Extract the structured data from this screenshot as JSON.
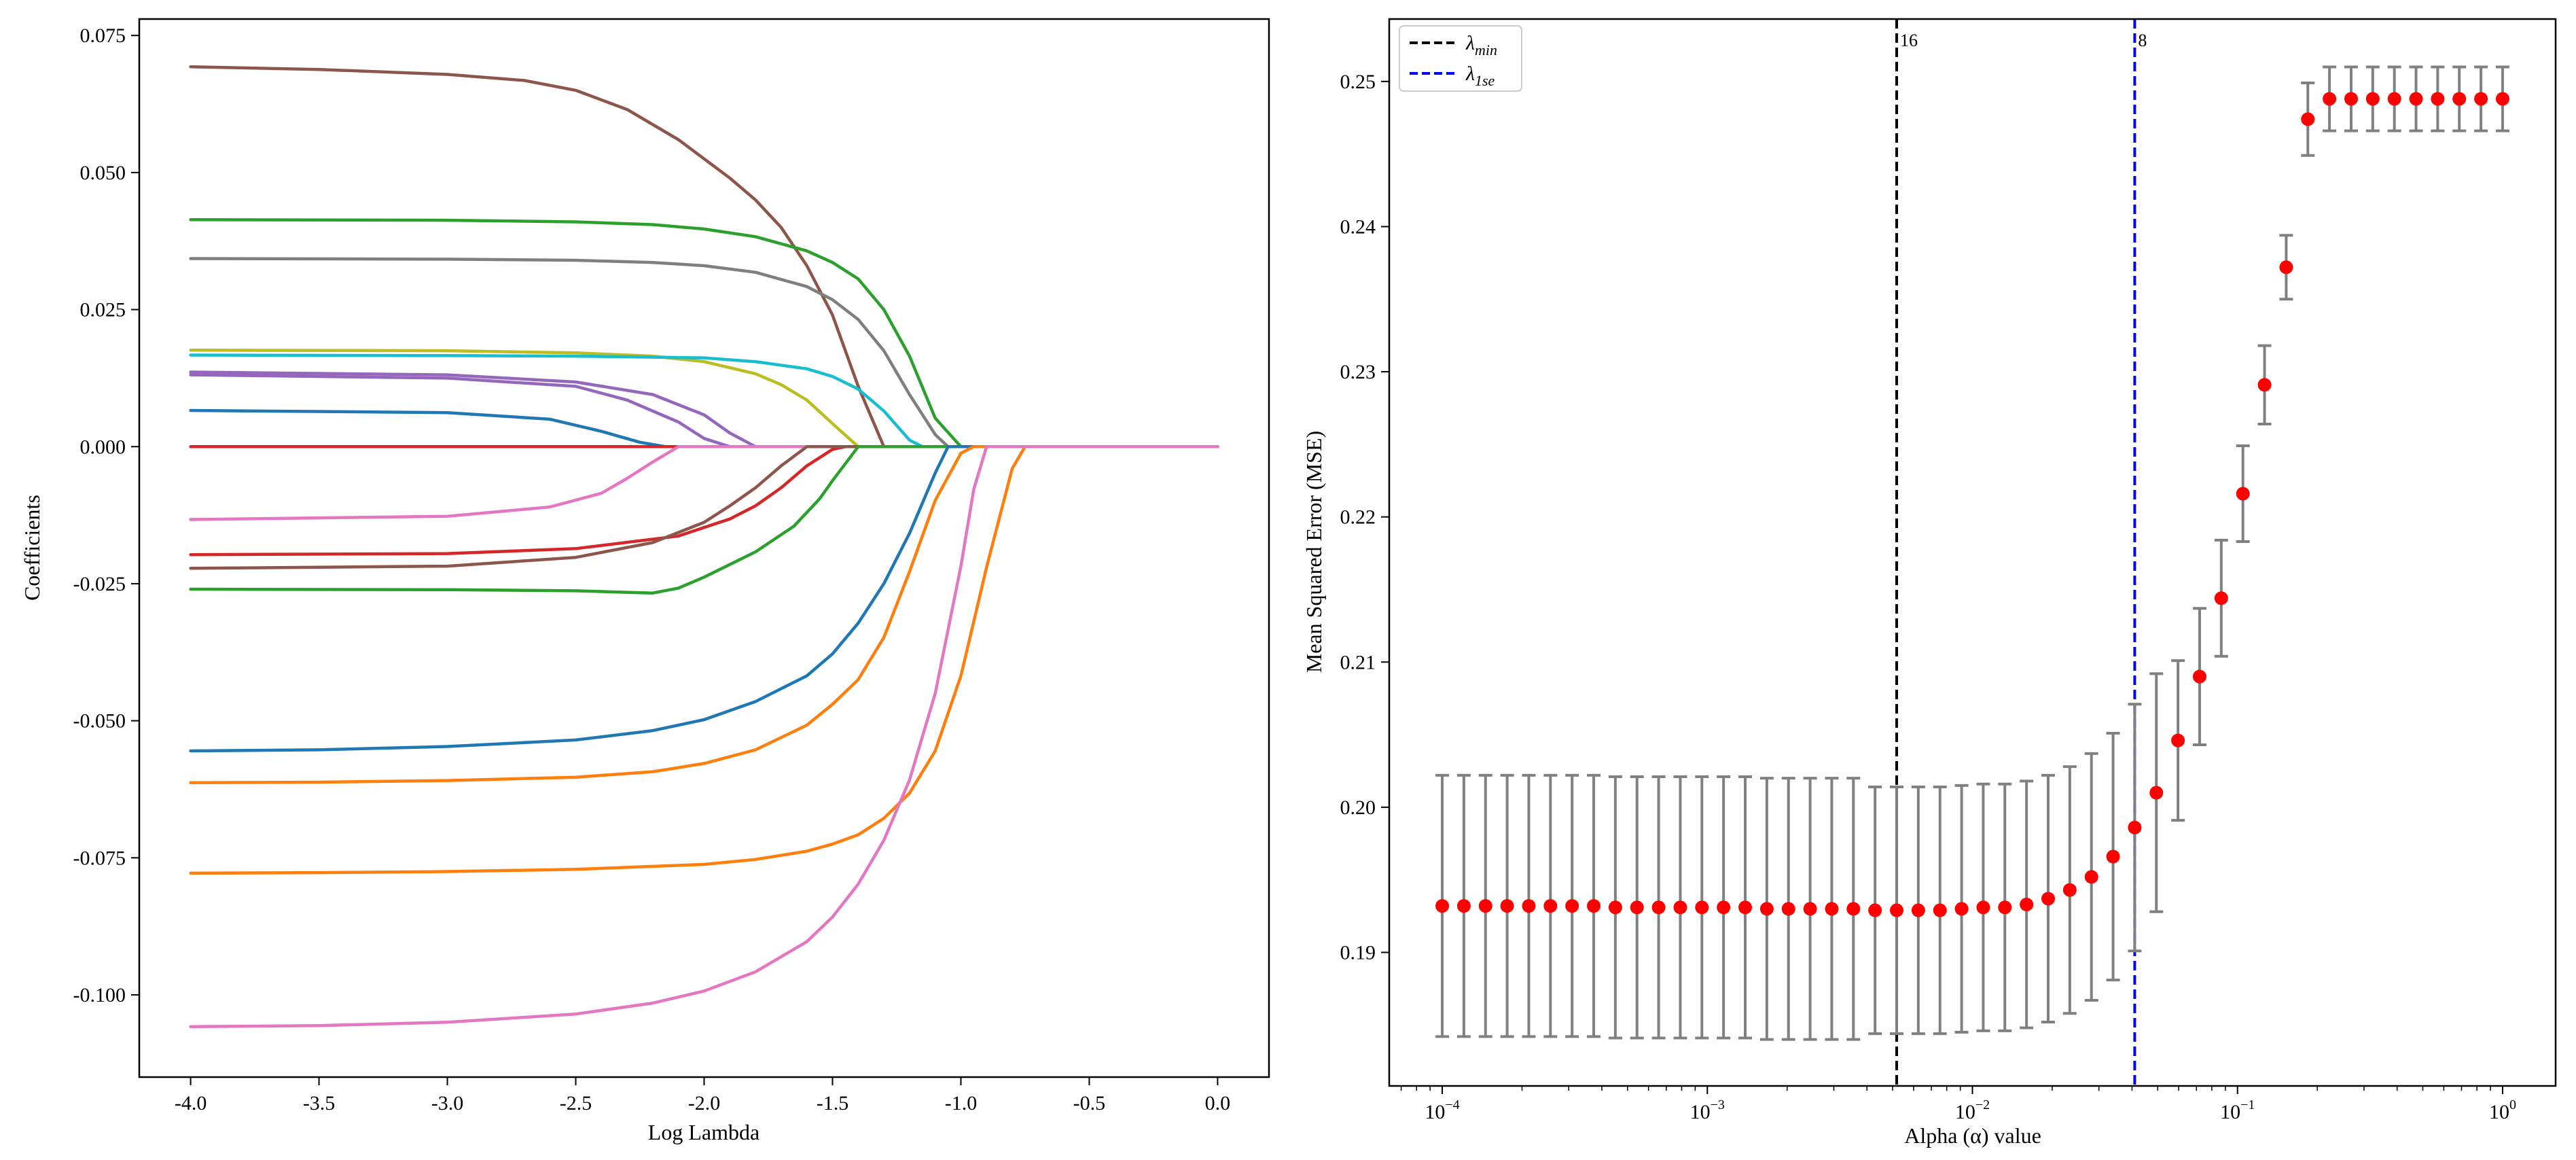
{
  "chart_data": [
    {
      "type": "line",
      "title": "",
      "xlabel": "Log Lambda",
      "ylabel": "Coefficients",
      "xlim": [
        -4.2,
        0.2
      ],
      "ylim": [
        -0.115,
        0.078
      ],
      "xticks": [
        {
          "value": -4.0,
          "label": "-4.0"
        },
        {
          "value": -3.5,
          "label": "-3.5"
        },
        {
          "value": -3.0,
          "label": "-3.0"
        },
        {
          "value": -2.5,
          "label": "-2.5"
        },
        {
          "value": -2.0,
          "label": "-2.0"
        },
        {
          "value": -1.5,
          "label": "-1.5"
        },
        {
          "value": -1.0,
          "label": "-1.0"
        },
        {
          "value": -0.5,
          "label": "-0.5"
        },
        {
          "value": 0.0,
          "label": "0.0"
        }
      ],
      "yticks": [
        {
          "value": 0.075,
          "label": "0.075"
        },
        {
          "value": 0.05,
          "label": "0.050"
        },
        {
          "value": 0.025,
          "label": "0.025"
        },
        {
          "value": 0.0,
          "label": "0.000"
        },
        {
          "value": -0.025,
          "label": "-0.025"
        },
        {
          "value": -0.05,
          "label": "-0.050"
        },
        {
          "value": -0.075,
          "label": "-0.075"
        },
        {
          "value": -0.1,
          "label": "-0.100"
        }
      ],
      "series": [
        {
          "name": "brown_top",
          "color": "#8c564b",
          "x": [
            -4.0,
            -3.5,
            -3.0,
            -2.7,
            -2.5,
            -2.3,
            -2.1,
            -1.9,
            -1.8,
            -1.7,
            -1.6,
            -1.5,
            -1.4,
            -1.3,
            -1.2,
            -1.1,
            0.0
          ],
          "y": [
            0.0693,
            0.0688,
            0.0679,
            0.0668,
            0.065,
            0.0615,
            0.056,
            0.049,
            0.045,
            0.04,
            0.033,
            0.024,
            0.011,
            0.0,
            0.0,
            0.0,
            0.0
          ]
        },
        {
          "name": "green_top",
          "color": "#2ca02c",
          "x": [
            -4.0,
            -3.0,
            -2.5,
            -2.2,
            -2.0,
            -1.8,
            -1.6,
            -1.5,
            -1.4,
            -1.3,
            -1.2,
            -1.1,
            -1.0,
            0.0
          ],
          "y": [
            0.0414,
            0.0413,
            0.041,
            0.0405,
            0.0397,
            0.0383,
            0.0357,
            0.0336,
            0.0306,
            0.025,
            0.0165,
            0.0052,
            0.0,
            0.0
          ]
        },
        {
          "name": "gray",
          "color": "#7f7f7f",
          "x": [
            -4.0,
            -3.0,
            -2.5,
            -2.2,
            -2.0,
            -1.8,
            -1.6,
            -1.5,
            -1.4,
            -1.3,
            -1.2,
            -1.1,
            -1.05,
            0.0
          ],
          "y": [
            0.0343,
            0.0342,
            0.034,
            0.0336,
            0.033,
            0.0318,
            0.0292,
            0.0268,
            0.0232,
            0.0175,
            0.0095,
            0.0022,
            0.0,
            0.0
          ]
        },
        {
          "name": "olive",
          "color": "#bcbd22",
          "x": [
            -4.0,
            -3.0,
            -2.5,
            -2.2,
            -2.0,
            -1.8,
            -1.7,
            -1.6,
            -1.5,
            -1.4,
            0.0
          ],
          "y": [
            0.0176,
            0.0175,
            0.0171,
            0.0165,
            0.0155,
            0.0133,
            0.0113,
            0.0085,
            0.0042,
            0.0,
            0.0
          ]
        },
        {
          "name": "cyan",
          "color": "#17becf",
          "x": [
            -4.0,
            -3.0,
            -2.5,
            -2.0,
            -1.8,
            -1.6,
            -1.5,
            -1.4,
            -1.3,
            -1.2,
            -1.15,
            0.0
          ],
          "y": [
            0.0167,
            0.0166,
            0.0165,
            0.0162,
            0.0155,
            0.0142,
            0.0128,
            0.0105,
            0.0065,
            0.0012,
            0.0,
            0.0
          ]
        },
        {
          "name": "purple_a",
          "color": "#9467bd",
          "x": [
            -4.0,
            -3.0,
            -2.5,
            -2.2,
            -2.0,
            -1.9,
            -1.8,
            0.0
          ],
          "y": [
            0.0136,
            0.0131,
            0.0118,
            0.0095,
            0.0058,
            0.0025,
            0.0,
            0.0
          ]
        },
        {
          "name": "purple_b",
          "color": "#9467bd",
          "x": [
            -4.0,
            -3.0,
            -2.5,
            -2.3,
            -2.1,
            -2.0,
            -1.9,
            0.0
          ],
          "y": [
            0.0131,
            0.0125,
            0.011,
            0.0085,
            0.0045,
            0.0015,
            0.0,
            0.0
          ]
        },
        {
          "name": "blue_small",
          "color": "#1f77b4",
          "x": [
            -4.0,
            -3.0,
            -2.6,
            -2.4,
            -2.25,
            -2.15,
            0.0
          ],
          "y": [
            0.0066,
            0.0062,
            0.005,
            0.0028,
            0.0008,
            0.0,
            0.0
          ]
        },
        {
          "name": "red_zero",
          "color": "#d62728",
          "x": [
            -4.0,
            0.0
          ],
          "y": [
            0.0,
            0.0
          ]
        },
        {
          "name": "pink_small",
          "color": "#e377c2",
          "x": [
            -4.0,
            -3.0,
            -2.6,
            -2.4,
            -2.3,
            -2.2,
            -2.1,
            0.0
          ],
          "y": [
            -0.0133,
            -0.0127,
            -0.011,
            -0.0085,
            -0.0058,
            -0.0028,
            0.0,
            0.0
          ]
        },
        {
          "name": "red_neg",
          "color": "#d62728",
          "x": [
            -4.0,
            -3.0,
            -2.5,
            -2.1,
            -1.9,
            -1.8,
            -1.7,
            -1.6,
            -1.5,
            -1.45,
            0.0
          ],
          "y": [
            -0.0197,
            -0.0195,
            -0.0186,
            -0.0163,
            -0.0132,
            -0.0108,
            -0.0075,
            -0.0035,
            -0.0005,
            0.0,
            0.0
          ]
        },
        {
          "name": "brown_neg",
          "color": "#8c564b",
          "x": [
            -4.0,
            -3.0,
            -2.5,
            -2.2,
            -2.0,
            -1.9,
            -1.8,
            -1.7,
            -1.6,
            0.0
          ],
          "y": [
            -0.0222,
            -0.0218,
            -0.0202,
            -0.0175,
            -0.0138,
            -0.0108,
            -0.0075,
            -0.0035,
            0.0,
            0.0
          ]
        },
        {
          "name": "green_neg",
          "color": "#2ca02c",
          "x": [
            -4.0,
            -3.0,
            -2.5,
            -2.2,
            -2.1,
            -2.0,
            -1.8,
            -1.65,
            -1.55,
            -1.5,
            -1.4,
            0.0
          ],
          "y": [
            -0.026,
            -0.0261,
            -0.0263,
            -0.0267,
            -0.0258,
            -0.0238,
            -0.0192,
            -0.0145,
            -0.0095,
            -0.0062,
            0.0,
            0.0
          ]
        },
        {
          "name": "blue_neg",
          "color": "#1f77b4",
          "x": [
            -4.0,
            -3.5,
            -3.0,
            -2.5,
            -2.2,
            -2.0,
            -1.8,
            -1.6,
            -1.5,
            -1.4,
            -1.3,
            -1.2,
            -1.1,
            -1.05,
            0.0
          ],
          "y": [
            -0.0555,
            -0.0553,
            -0.0547,
            -0.0535,
            -0.0518,
            -0.0498,
            -0.0465,
            -0.0418,
            -0.0378,
            -0.0322,
            -0.025,
            -0.0158,
            -0.0048,
            0.0,
            0.0
          ]
        },
        {
          "name": "orange_a",
          "color": "#ff7f0e",
          "x": [
            -4.0,
            -3.5,
            -3.0,
            -2.5,
            -2.2,
            -2.0,
            -1.8,
            -1.6,
            -1.5,
            -1.4,
            -1.3,
            -1.2,
            -1.1,
            -1.0,
            -0.95,
            0.0
          ],
          "y": [
            -0.0613,
            -0.0612,
            -0.0609,
            -0.0603,
            -0.0593,
            -0.0578,
            -0.0553,
            -0.0508,
            -0.047,
            -0.0425,
            -0.0348,
            -0.0228,
            -0.0098,
            -0.0012,
            0.0,
            0.0
          ]
        },
        {
          "name": "orange_b",
          "color": "#ff7f0e",
          "x": [
            -4.0,
            -3.5,
            -3.0,
            -2.5,
            -2.0,
            -1.8,
            -1.6,
            -1.5,
            -1.4,
            -1.3,
            -1.2,
            -1.1,
            -1.0,
            -0.9,
            -0.8,
            -0.75,
            0.0
          ],
          "y": [
            -0.0778,
            -0.0777,
            -0.0775,
            -0.0771,
            -0.0762,
            -0.0753,
            -0.0738,
            -0.0725,
            -0.0708,
            -0.0678,
            -0.0632,
            -0.0555,
            -0.0418,
            -0.022,
            -0.004,
            0.0,
            0.0
          ]
        },
        {
          "name": "pink_big",
          "color": "#e377c2",
          "x": [
            -4.0,
            -3.5,
            -3.0,
            -2.5,
            -2.2,
            -2.0,
            -1.8,
            -1.6,
            -1.5,
            -1.4,
            -1.3,
            -1.2,
            -1.1,
            -1.0,
            -0.95,
            -0.9,
            -0.85,
            -0.8,
            0.0
          ],
          "y": [
            -0.1058,
            -0.1056,
            -0.105,
            -0.1035,
            -0.1015,
            -0.0993,
            -0.0958,
            -0.0903,
            -0.0858,
            -0.0798,
            -0.0718,
            -0.0608,
            -0.045,
            -0.0218,
            -0.0078,
            0.0,
            0.0,
            0.0,
            0.0
          ]
        }
      ]
    },
    {
      "type": "scatter",
      "title": "",
      "xlabel": "Alpha (α) value",
      "ylabel": "Mean Squared Error (MSE)",
      "xscale": "log",
      "xlim_log10": [
        -4.2,
        0.2
      ],
      "ylim": [
        0.1808,
        0.2543
      ],
      "xticks": [
        {
          "exp": -4,
          "base": "10",
          "sup": "−4"
        },
        {
          "exp": -3,
          "base": "10",
          "sup": "−3"
        },
        {
          "exp": -2,
          "base": "10",
          "sup": "−2"
        },
        {
          "exp": -1,
          "base": "10",
          "sup": "−1"
        },
        {
          "exp": 0,
          "base": "10",
          "sup": "0"
        }
      ],
      "yticks": [
        {
          "value": 0.19,
          "label": "0.19"
        },
        {
          "value": 0.2,
          "label": "0.20"
        },
        {
          "value": 0.21,
          "label": "0.21"
        },
        {
          "value": 0.22,
          "label": "0.22"
        },
        {
          "value": 0.23,
          "label": "0.23"
        },
        {
          "value": 0.24,
          "label": "0.24"
        },
        {
          "value": 0.25,
          "label": "0.25"
        }
      ],
      "log10_alpha": [
        -4.0,
        -3.9184,
        -3.8367,
        -3.7551,
        -3.6735,
        -3.5918,
        -3.5102,
        -3.4286,
        -3.3469,
        -3.2653,
        -3.1837,
        -3.102,
        -3.0204,
        -2.9388,
        -2.8571,
        -2.7755,
        -2.6939,
        -2.6122,
        -2.5306,
        -2.449,
        -2.3673,
        -2.2857,
        -2.2041,
        -2.1224,
        -2.0408,
        -1.9592,
        -1.8776,
        -1.7959,
        -1.7143,
        -1.6327,
        -1.551,
        -1.4694,
        -1.3878,
        -1.3061,
        -1.2245,
        -1.1429,
        -1.0612,
        -0.9796,
        -0.898,
        -0.8163,
        -0.7347,
        -0.6531,
        -0.5714,
        -0.4898,
        -0.4082,
        -0.3265,
        -0.2449,
        -0.1633,
        -0.0816,
        0.0
      ],
      "mse": [
        0.1932,
        0.1932,
        0.1932,
        0.1932,
        0.1932,
        0.1932,
        0.1932,
        0.1932,
        0.1931,
        0.1931,
        0.1931,
        0.1931,
        0.1931,
        0.1931,
        0.1931,
        0.193,
        0.193,
        0.193,
        0.193,
        0.193,
        0.1929,
        0.1929,
        0.1929,
        0.1929,
        0.193,
        0.1931,
        0.1931,
        0.1933,
        0.1937,
        0.1943,
        0.1952,
        0.1966,
        0.1986,
        0.201,
        0.2046,
        0.209,
        0.2144,
        0.2216,
        0.2291,
        0.2372,
        0.2474,
        0.2488,
        0.2488,
        0.2488,
        0.2488,
        0.2488,
        0.2488,
        0.2488,
        0.2488,
        0.2488
      ],
      "err": [
        0.009,
        0.009,
        0.009,
        0.009,
        0.009,
        0.009,
        0.009,
        0.009,
        0.009,
        0.009,
        0.009,
        0.009,
        0.009,
        0.009,
        0.009,
        0.009,
        0.009,
        0.009,
        0.009,
        0.009,
        0.0085,
        0.0085,
        0.0085,
        0.0085,
        0.0085,
        0.0085,
        0.0085,
        0.0085,
        0.0085,
        0.0085,
        0.0085,
        0.0085,
        0.0085,
        0.0082,
        0.0055,
        0.0047,
        0.004,
        0.0033,
        0.0027,
        0.0022,
        0.0025,
        0.0022,
        0.0022,
        0.0022,
        0.0022,
        0.0022,
        0.0022,
        0.0022,
        0.0022,
        0.0022
      ],
      "vlines": [
        {
          "name": "λmin",
          "log10_x": -2.2857,
          "color": "#000000",
          "label": "16"
        },
        {
          "name": "λ1se",
          "log10_x": -1.3878,
          "color": "#0000ff",
          "label": "8"
        }
      ],
      "legend": [
        {
          "name": "λmin",
          "base": "λ",
          "sub": "min",
          "color": "#000000"
        },
        {
          "name": "λ1se",
          "base": "λ",
          "sub": "1se",
          "color": "#0000ff"
        }
      ],
      "colors": {
        "marker": "#ff0000",
        "errorbar": "#808080"
      }
    }
  ]
}
